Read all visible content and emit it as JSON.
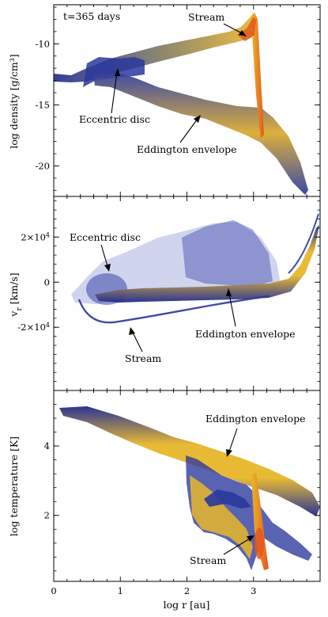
{
  "figure": {
    "time_label": "t=365 days",
    "shared_xlabel": "log r [au]"
  },
  "colors": {
    "density_low": "#1f2a8f",
    "density_mid": "#e8b72a",
    "density_high": "#e4571d",
    "frame": "#000000"
  },
  "chart_data": [
    {
      "type": "scatter",
      "panel": "density",
      "title": "",
      "ylabel": "log density [g/cm³]",
      "xlabel": "",
      "xlim": [
        0,
        4
      ],
      "ylim": [
        -22.5,
        -6.8
      ],
      "xticks": [
        0,
        1,
        2,
        3
      ],
      "yticks": [
        -20,
        -15,
        -10
      ],
      "ytick_labels": [
        "-20",
        "-15",
        "-10"
      ],
      "grid": false,
      "annotations": [
        {
          "text": "Stream",
          "x": 2.3,
          "y": -7.9,
          "arrow_to": [
            3.05,
            -9.0
          ]
        },
        {
          "text": "Eccentric disc",
          "x": 1.05,
          "y": -16.1,
          "arrow_to": [
            0.95,
            -12.2
          ]
        },
        {
          "text": "Eddington envelope",
          "x": 2.3,
          "y": -18.6,
          "arrow_to": [
            2.25,
            -15.2
          ]
        }
      ],
      "series": [
        {
          "values": [
            [
              0.0,
              -12.0
            ],
            [
              0.2,
              -12.0
            ],
            [
              0.4,
              -11.6
            ],
            [
              0.6,
              -11.2
            ],
            [
              0.9,
              -10.9
            ],
            [
              1.2,
              -10.5
            ],
            [
              1.6,
              -10.0
            ],
            [
              2.0,
              -9.8
            ],
            [
              2.5,
              -9.6
            ],
            [
              2.9,
              -9.3
            ],
            [
              3.1,
              -8.6
            ],
            [
              3.15,
              -7.6
            ]
          ]
        },
        {
          "values": [
            [
              0.6,
              -13.0
            ],
            [
              0.8,
              -12.2
            ],
            [
              1.0,
              -12.4
            ],
            [
              1.3,
              -12.8
            ],
            [
              1.5,
              -13.8
            ],
            [
              1.8,
              -14.4
            ],
            [
              2.1,
              -15.0
            ],
            [
              2.4,
              -15.6
            ],
            [
              2.8,
              -15.9
            ],
            [
              3.1,
              -16.4
            ],
            [
              3.3,
              -17.0
            ],
            [
              3.6,
              -19.6
            ],
            [
              3.8,
              -22.0
            ]
          ]
        }
      ]
    },
    {
      "type": "scatter",
      "panel": "radial_velocity",
      "title": "",
      "ylabel": "vr [km/s]",
      "ylabel_main": "v",
      "ylabel_sub": "r",
      "ylabel_unit": " [km/s]",
      "xlabel": "",
      "xlim": [
        0,
        4
      ],
      "ylim": [
        -48000,
        38000
      ],
      "xticks": [
        0,
        1,
        2,
        3
      ],
      "yticks": [
        -20000,
        0,
        20000
      ],
      "ytick_labels": [
        {
          "main": "-2×10",
          "exp": "4"
        },
        {
          "main": "0",
          "exp": ""
        },
        {
          "main": "2×10",
          "exp": "4"
        }
      ],
      "grid": false,
      "annotations": [
        {
          "text": "Eccentric disc",
          "x": 0.2,
          "y": 22000,
          "arrow_to": [
            0.7,
            10000
          ]
        },
        {
          "text": "Eddington envelope",
          "x": 2.0,
          "y": -15000,
          "arrow_to": [
            2.25,
            500
          ]
        },
        {
          "text": "Stream",
          "x": 0.9,
          "y": -26000,
          "arrow_to": [
            1.0,
            -16000
          ]
        }
      ],
      "series": [
        {
          "values": [
            [
              0.3,
              0
            ],
            [
              0.6,
              1500
            ],
            [
              0.9,
              1000
            ],
            [
              1.3,
              500
            ],
            [
              1.7,
              300
            ],
            [
              2.0,
              400
            ],
            [
              2.5,
              600
            ],
            [
              3.0,
              1200
            ],
            [
              3.3,
              4000
            ],
            [
              3.6,
              12000
            ],
            [
              3.8,
              24000
            ],
            [
              3.9,
              30000
            ]
          ]
        },
        {
          "values": [
            [
              0.4,
              -5000
            ],
            [
              0.6,
              -10000
            ],
            [
              0.8,
              -13500
            ],
            [
              1.0,
              -13000
            ],
            [
              1.3,
              -11000
            ],
            [
              1.7,
              -7500
            ],
            [
              2.2,
              -4000
            ],
            [
              2.8,
              -1500
            ],
            [
              3.2,
              0
            ]
          ]
        }
      ]
    },
    {
      "type": "scatter",
      "panel": "temperature",
      "title": "",
      "ylabel": "log temperature [K]",
      "xlabel": "log r [au]",
      "xlim": [
        0,
        4
      ],
      "ylim": [
        0.1,
        5.6
      ],
      "xticks": [
        0,
        1,
        2,
        3
      ],
      "xtick_labels": [
        "0",
        "1",
        "2",
        "3"
      ],
      "yticks": [
        2,
        4
      ],
      "ytick_labels": [
        "2",
        "4"
      ],
      "grid": false,
      "annotations": [
        {
          "text": "Eddington envelope",
          "x": 2.6,
          "y": 4.85,
          "arrow_to": [
            2.6,
            3.85
          ]
        },
        {
          "text": "Stream",
          "x": 2.3,
          "y": 0.95,
          "arrow_to": [
            3.05,
            1.55
          ]
        }
      ],
      "series": [
        {
          "values": [
            [
              0.0,
              5.15
            ],
            [
              0.3,
              5.05
            ],
            [
              0.6,
              4.95
            ],
            [
              0.9,
              4.8
            ],
            [
              1.2,
              4.55
            ],
            [
              1.5,
              4.3
            ],
            [
              1.8,
              4.05
            ],
            [
              2.1,
              3.8
            ],
            [
              2.4,
              3.6
            ],
            [
              2.7,
              3.35
            ],
            [
              3.0,
              3.15
            ],
            [
              3.3,
              2.9
            ],
            [
              3.6,
              2.6
            ],
            [
              3.8,
              2.3
            ]
          ]
        },
        {
          "values": [
            [
              2.0,
              3.0
            ],
            [
              2.2,
              1.6
            ],
            [
              2.4,
              1.1
            ],
            [
              2.7,
              1.2
            ],
            [
              2.9,
              1.4
            ],
            [
              3.05,
              1.6
            ],
            [
              3.12,
              1.3
            ],
            [
              3.18,
              0.6
            ]
          ]
        }
      ]
    }
  ]
}
